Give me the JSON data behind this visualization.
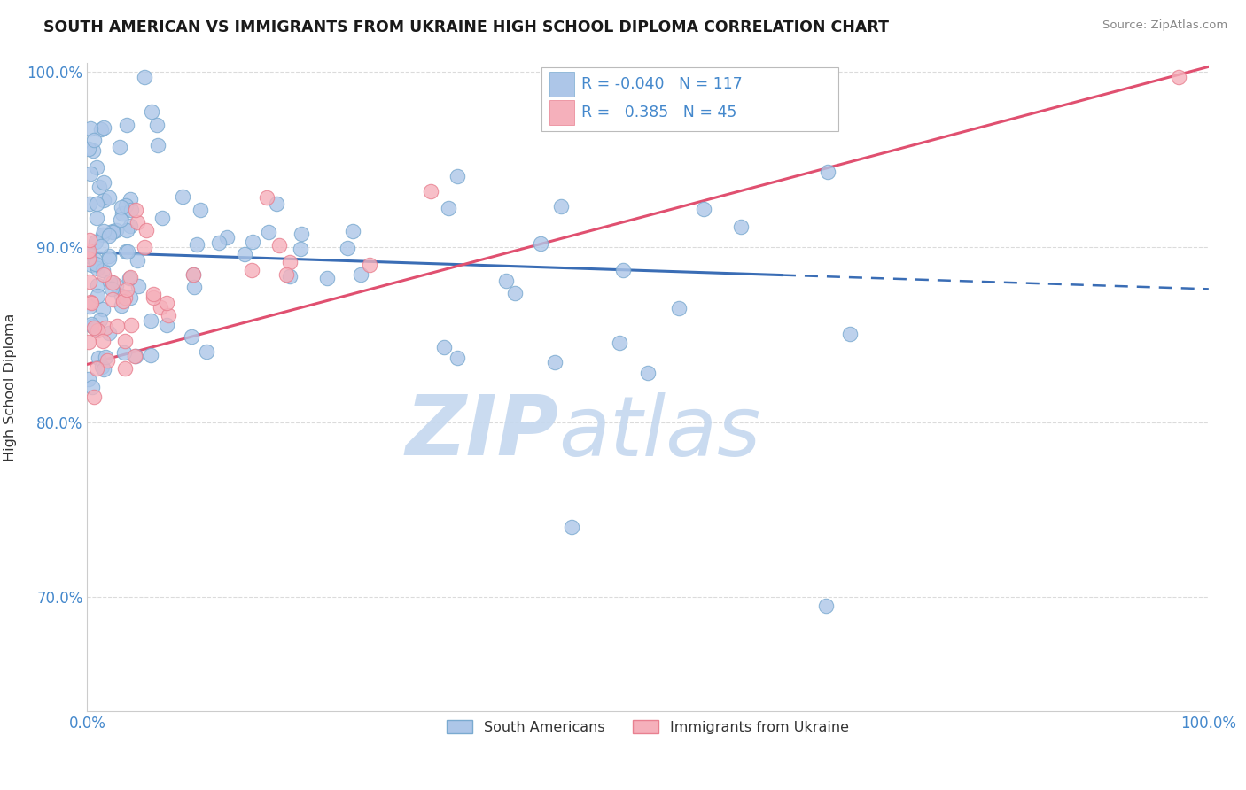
{
  "title": "SOUTH AMERICAN VS IMMIGRANTS FROM UKRAINE HIGH SCHOOL DIPLOMA CORRELATION CHART",
  "source": "Source: ZipAtlas.com",
  "ylabel": "High School Diploma",
  "xlim": [
    0.0,
    1.0
  ],
  "ylim": [
    0.635,
    1.005
  ],
  "yticks": [
    0.7,
    0.8,
    0.9,
    1.0
  ],
  "ytick_labels": [
    "70.0%",
    "80.0%",
    "90.0%",
    "100.0%"
  ],
  "xtick_labels": [
    "0.0%",
    "100.0%"
  ],
  "blue_R": -0.04,
  "blue_N": 117,
  "pink_R": 0.385,
  "pink_N": 45,
  "blue_color": "#adc6e8",
  "blue_edge_color": "#7aaad0",
  "blue_line_color": "#3a6db5",
  "pink_color": "#f5b0bb",
  "pink_edge_color": "#e88090",
  "pink_line_color": "#e05070",
  "watermark_color": "#c5d8ef",
  "legend_blue_label": "South Americans",
  "legend_pink_label": "Immigrants from Ukraine",
  "background_color": "#ffffff",
  "grid_color": "#cccccc",
  "title_fontsize": 12.5,
  "axis_tick_color": "#4488cc",
  "blue_line_start_y": 0.897,
  "blue_line_end_y": 0.876,
  "pink_line_start_y": 0.833,
  "pink_line_end_y": 1.003
}
